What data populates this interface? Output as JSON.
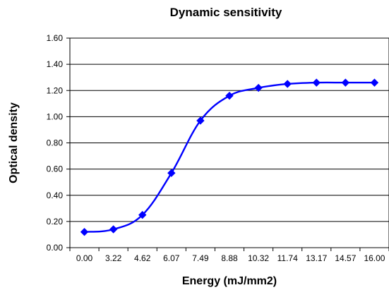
{
  "chart_data": {
    "type": "line",
    "title": "Dynamic sensitivity",
    "xlabel": "Energy (mJ/mm2)",
    "ylabel": "Optical density",
    "categories": [
      "0.00",
      "3.22",
      "4.62",
      "6.07",
      "7.49",
      "8.88",
      "10.32",
      "11.74",
      "13.17",
      "14.57",
      "16.00"
    ],
    "series": [
      {
        "values": [
          0.12,
          0.14,
          0.25,
          0.57,
          0.97,
          1.16,
          1.22,
          1.25,
          1.26,
          1.26,
          1.26
        ],
        "color": "#0000ff",
        "marker": "diamond",
        "smooth": true
      }
    ],
    "ylim": [
      0,
      1.6
    ],
    "yticks": [
      "0.00",
      "0.20",
      "0.40",
      "0.60",
      "0.80",
      "1.00",
      "1.20",
      "1.40",
      "1.60"
    ],
    "grid": "horizontal",
    "legend": "none"
  }
}
